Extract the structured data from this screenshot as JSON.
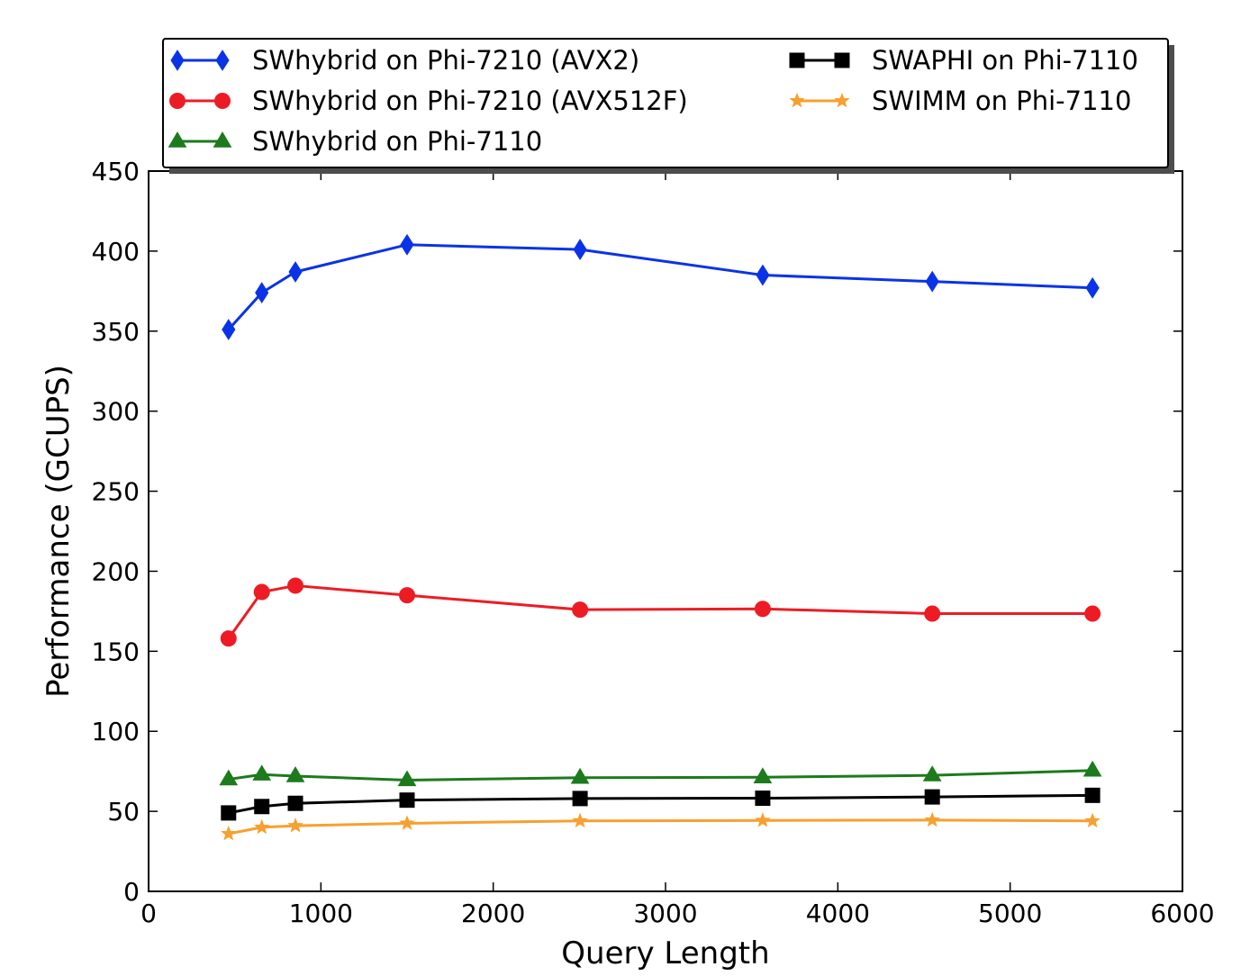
{
  "chart_data": {
    "type": "line",
    "title": "",
    "xlabel": "Query Length",
    "ylabel": "Performance (GCUPS)",
    "xlim": [
      0,
      6000
    ],
    "ylim": [
      0,
      450
    ],
    "xticks": [
      0,
      1000,
      2000,
      3000,
      4000,
      5000,
      6000
    ],
    "xtick_labels": [
      "0",
      "1000",
      "2000",
      "3000",
      "4000",
      "5000",
      "6000"
    ],
    "yticks": [
      0,
      50,
      100,
      150,
      200,
      250,
      300,
      350,
      400,
      450
    ],
    "ytick_labels": [
      "0",
      "50",
      "100",
      "150",
      "200",
      "250",
      "300",
      "350",
      "400",
      "450"
    ],
    "grid": false,
    "legend_location": "top, above plot, two columns",
    "x": [
      464,
      657,
      852,
      1500,
      2504,
      3564,
      4548,
      5478
    ],
    "series": [
      {
        "name": "SWhybrid on Phi-7210 (AVX2)",
        "color": "#0a33e8",
        "marker": "thin-diamond",
        "values": [
          351,
          374,
          387,
          404,
          401,
          385,
          381,
          377
        ]
      },
      {
        "name": "SWhybrid on Phi-7210 (AVX512F)",
        "color": "#ed1c24",
        "marker": "circle",
        "values": [
          158,
          187,
          191,
          185,
          176,
          176.5,
          173.5,
          173.5
        ]
      },
      {
        "name": "SWhybrid on Phi-7110",
        "color": "#1d7a1d",
        "marker": "triangle",
        "values": [
          70,
          73,
          72,
          69.5,
          71,
          71.3,
          72.5,
          75.5
        ]
      },
      {
        "name": "SWAPHI on Phi-7110",
        "color": "#000000",
        "marker": "square",
        "values": [
          49,
          53,
          55,
          57,
          58,
          58.2,
          59,
          60
        ]
      },
      {
        "name": "SWIMM on Phi-7110",
        "color": "#f7a030",
        "marker": "star",
        "values": [
          36,
          40,
          41,
          42.5,
          44,
          44.3,
          44.5,
          44
        ]
      }
    ]
  }
}
